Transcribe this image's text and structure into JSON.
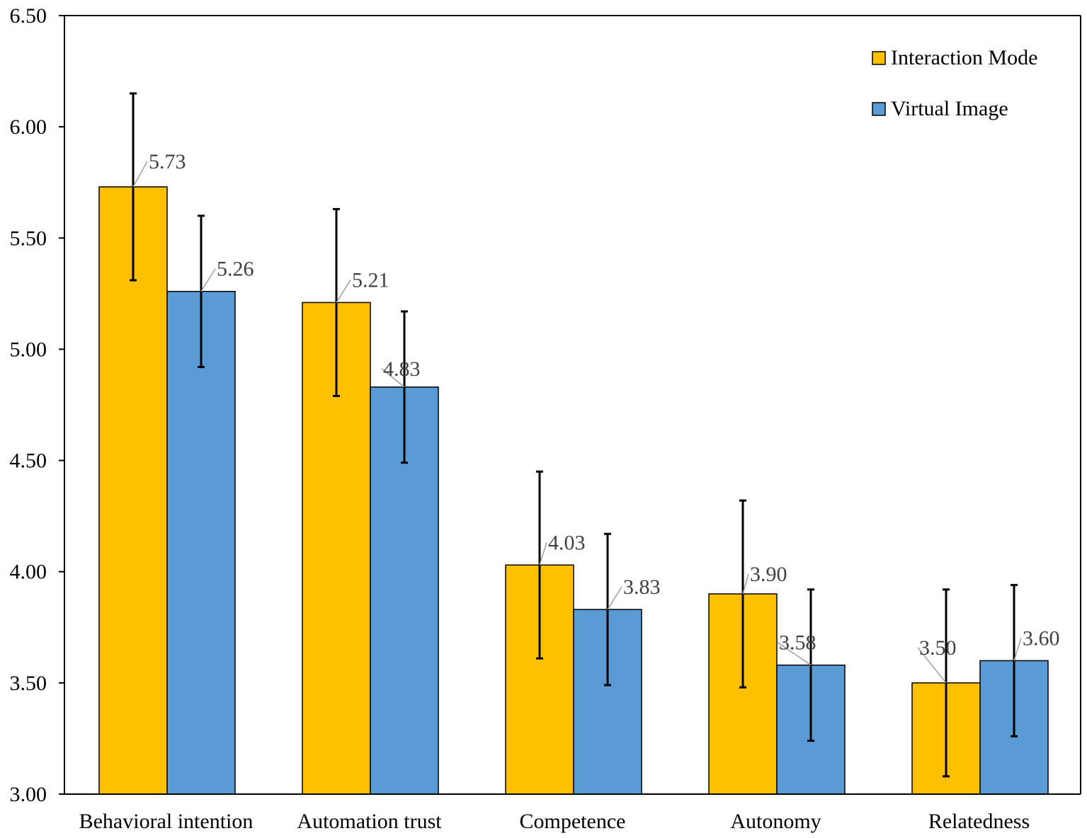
{
  "chart_data": {
    "type": "bar",
    "title": "",
    "xlabel": "",
    "ylabel": "",
    "ylim": [
      3.0,
      6.5
    ],
    "yticks": [
      3.0,
      3.5,
      4.0,
      4.5,
      5.0,
      5.5,
      6.0,
      6.5
    ],
    "ytick_labels": [
      "3.00",
      "3.50",
      "4.00",
      "4.50",
      "5.00",
      "5.50",
      "6.00",
      "6.50"
    ],
    "grid": false,
    "legend_position": "top-right",
    "categories": [
      "Behavioral intention",
      "Automation trust",
      "Competence",
      "Autonomy",
      "Relatedness"
    ],
    "series": [
      {
        "name": "Interaction Mode",
        "color": "#FFC000",
        "values": [
          5.73,
          5.21,
          4.03,
          3.9,
          3.5
        ],
        "value_labels": [
          "5.73",
          "5.21",
          "4.03",
          "3.90",
          "3.50"
        ],
        "error": [
          0.42,
          0.42,
          0.42,
          0.42,
          0.42
        ]
      },
      {
        "name": "Virtual Image",
        "color": "#5B9BD5",
        "values": [
          5.26,
          4.83,
          3.83,
          3.58,
          3.6
        ],
        "value_labels": [
          "5.26",
          "4.83",
          "3.83",
          "3.58",
          "3.60"
        ],
        "error": [
          0.34,
          0.34,
          0.34,
          0.34,
          0.34
        ]
      }
    ]
  }
}
